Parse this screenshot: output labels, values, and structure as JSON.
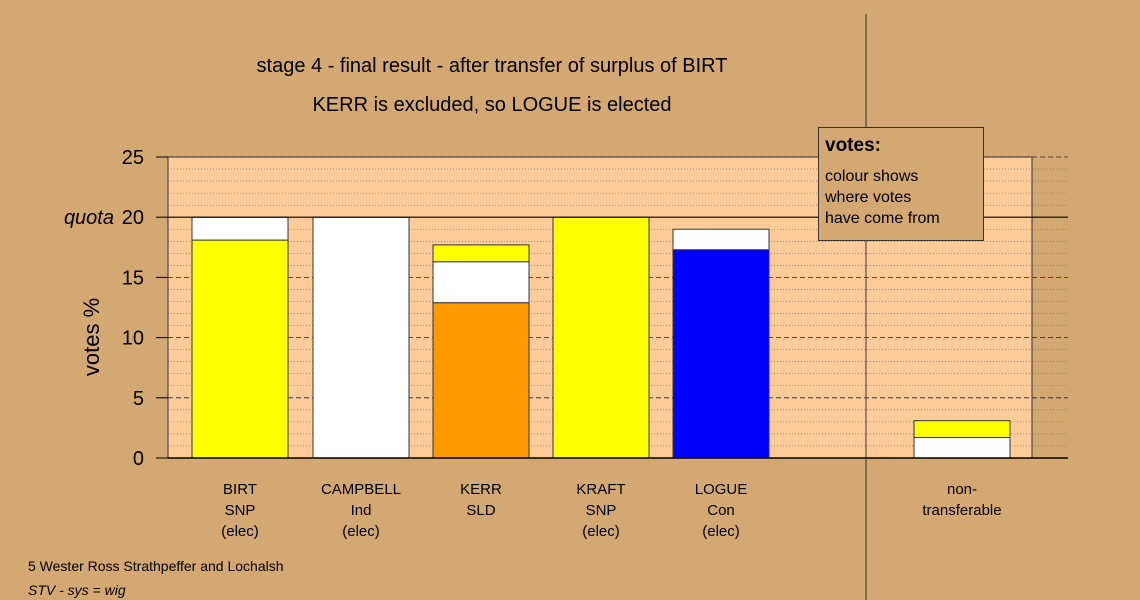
{
  "chart_data": {
    "type": "bar",
    "stacked": true,
    "title_lines": [
      "stage 4 - final result - after transfer of surplus of BIRT",
      "KERR is excluded, so LOGUE is elected"
    ],
    "ylabel": "votes %",
    "ylim": [
      0,
      25
    ],
    "yticks": [
      0,
      5,
      10,
      15,
      20,
      25
    ],
    "quota": {
      "value": 20,
      "label": "quota"
    },
    "categories": [
      {
        "lines": [
          "BIRT",
          "SNP",
          "(elec)"
        ],
        "segments": [
          {
            "value": 18.1,
            "color": "#ffff00"
          },
          {
            "value": 1.9,
            "color": "#ffffff"
          }
        ]
      },
      {
        "lines": [
          "CAMPBELL",
          "Ind",
          "(elec)"
        ],
        "segments": [
          {
            "value": 20.0,
            "color": "#ffffff"
          }
        ]
      },
      {
        "lines": [
          "KERR",
          "SLD"
        ],
        "segments": [
          {
            "value": 12.9,
            "color": "#ff9900"
          },
          {
            "value": 3.4,
            "color": "#ffffff"
          },
          {
            "value": 1.4,
            "color": "#ffff00"
          }
        ]
      },
      {
        "lines": [
          "KRAFT",
          "SNP",
          "(elec)"
        ],
        "segments": [
          {
            "value": 20.0,
            "color": "#ffff00"
          }
        ]
      },
      {
        "lines": [
          "LOGUE",
          "Con",
          "(elec)"
        ],
        "segments": [
          {
            "value": 17.3,
            "color": "#0000ff"
          },
          {
            "value": 1.7,
            "color": "#ffffff"
          }
        ]
      },
      {
        "lines": [
          "non-",
          "transferable"
        ],
        "segments": [
          {
            "value": 1.7,
            "color": "#ffffff"
          },
          {
            "value": 1.4,
            "color": "#ffff00"
          }
        ]
      }
    ],
    "legend": {
      "title": "votes:",
      "lines": [
        "colour shows",
        "where votes",
        "have come from"
      ]
    },
    "colors": {
      "background": "#d4a873",
      "plot_area": "#ffcc99"
    }
  },
  "footer": {
    "line1": "5 Wester Ross Strathpeffer and Lochalsh",
    "line2": "STV - sys = wig"
  }
}
